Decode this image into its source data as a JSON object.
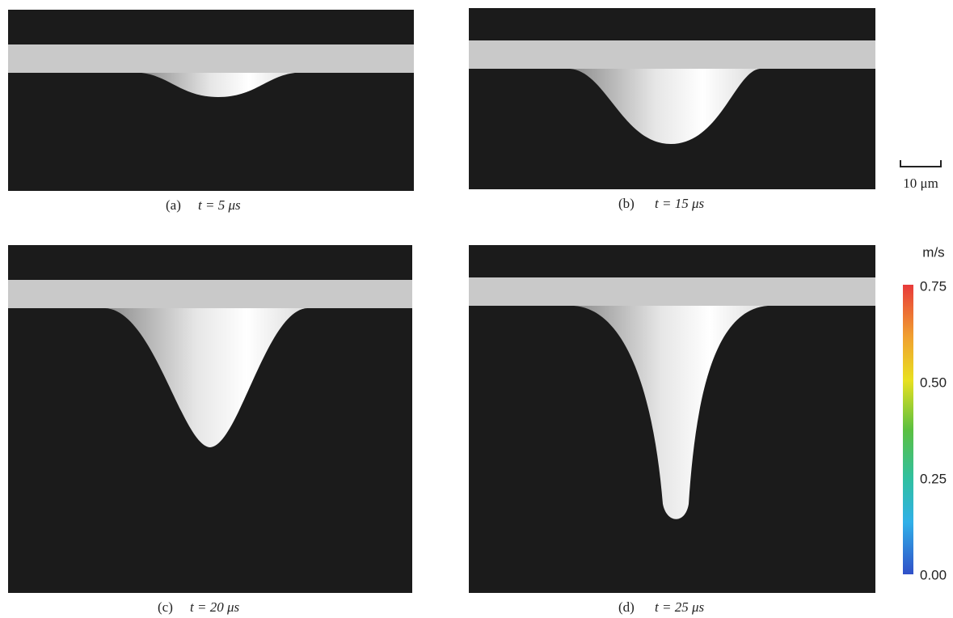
{
  "panels": [
    {
      "label": "(a)",
      "caption": "t = 5 μs"
    },
    {
      "label": "(b)",
      "caption": "t = 15 μs"
    },
    {
      "label": "(c)",
      "caption": "t = 20 μs"
    },
    {
      "label": "(d)",
      "caption": "t = 25 μs"
    }
  ],
  "scale_bar": {
    "label": "10 μm"
  },
  "colorbar": {
    "unit": "m/s",
    "ticks": [
      "0.75",
      "0.50",
      "0.25",
      "0.00"
    ]
  }
}
